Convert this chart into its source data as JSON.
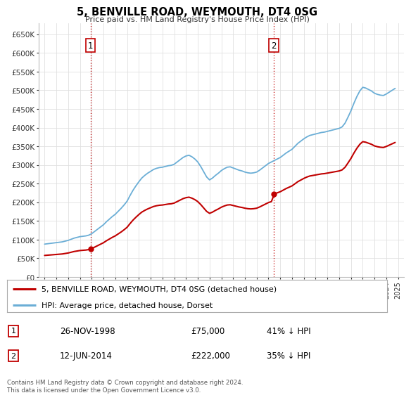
{
  "title": "5, BENVILLE ROAD, WEYMOUTH, DT4 0SG",
  "subtitle": "Price paid vs. HM Land Registry's House Price Index (HPI)",
  "ylabel_ticks": [
    "£0",
    "£50K",
    "£100K",
    "£150K",
    "£200K",
    "£250K",
    "£300K",
    "£350K",
    "£400K",
    "£450K",
    "£500K",
    "£550K",
    "£600K",
    "£650K"
  ],
  "ytick_values": [
    0,
    50000,
    100000,
    150000,
    200000,
    250000,
    300000,
    350000,
    400000,
    450000,
    500000,
    550000,
    600000,
    650000
  ],
  "hpi_color": "#6baed6",
  "price_color": "#c00000",
  "transaction1_x": 1998.9,
  "transaction1_price": 75000,
  "transaction2_x": 2014.45,
  "transaction2_price": 222000,
  "legend_line1": "5, BENVILLE ROAD, WEYMOUTH, DT4 0SG (detached house)",
  "legend_line2": "HPI: Average price, detached house, Dorset",
  "table_row1": [
    "1",
    "26-NOV-1998",
    "£75,000",
    "41% ↓ HPI"
  ],
  "table_row2": [
    "2",
    "12-JUN-2014",
    "£222,000",
    "35% ↓ HPI"
  ],
  "footnote": "Contains HM Land Registry data © Crown copyright and database right 2024.\nThis data is licensed under the Open Government Licence v3.0.",
  "background_color": "#ffffff",
  "grid_color": "#e0e0e0",
  "xlim": [
    1994.5,
    2025.5
  ],
  "ylim": [
    0,
    680000
  ]
}
